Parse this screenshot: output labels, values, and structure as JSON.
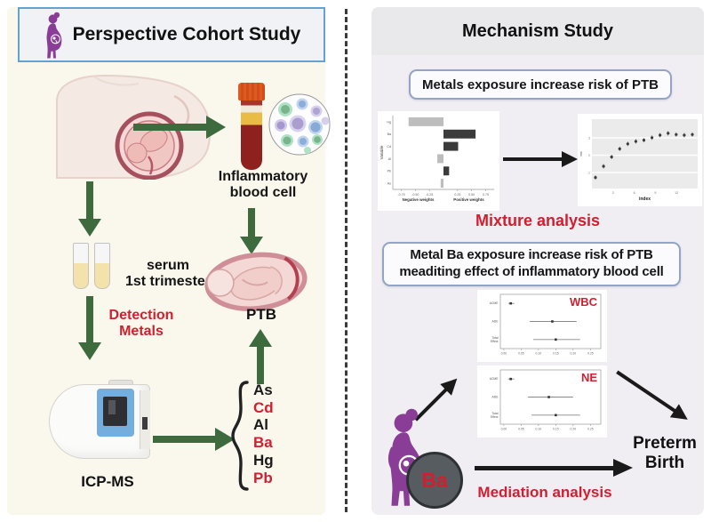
{
  "left_panel": {
    "title": "Perspective Cohort Study",
    "inflammatory_label": "Inflammatory\nblood cell",
    "serum_label": "serum\n1st trimester",
    "detection_label": "Detection\nMetals",
    "ptb_label": "PTB",
    "icpms_label": "ICP-MS",
    "metals": [
      {
        "symbol": "As",
        "color": "#1a1a1a"
      },
      {
        "symbol": "Cd",
        "color": "#cf2030"
      },
      {
        "symbol": "Al",
        "color": "#1a1a1a"
      },
      {
        "symbol": "Ba",
        "color": "#cf2030"
      },
      {
        "symbol": "Hg",
        "color": "#1a1a1a"
      },
      {
        "symbol": "Pb",
        "color": "#cf2030"
      }
    ]
  },
  "right_panel": {
    "title": "Mechanism Study",
    "box1_label": "Metals exposure increase risk of PTB",
    "mixture_label": "Mixture analysis",
    "box2_label": "Metal Ba exposure increase risk of PTB\nmeaditing effect of inflammatory blood cell",
    "mediation_label": "Mediation analysis",
    "ba_label": "Ba",
    "preterm_label": "Preterm\nBirth"
  },
  "colors": {
    "left_panel_bg": "#faf7ec",
    "right_panel_bg": "#f0edf3",
    "green_arrow": "#3e6b3e",
    "black_arrow": "#1a1a1a",
    "red_accent": "#cf2030",
    "purple_figure": "#8a3d96",
    "title_box_border": "#63a3d2"
  },
  "chart_data": [
    {
      "id": "wqs-weights",
      "type": "bar",
      "orientation": "horizontal",
      "ylabel": "Variable",
      "xlabel_neg": "Negative weights",
      "xlabel_pos": "Positive weights",
      "categories": [
        "Hg",
        "Ba",
        "Cd",
        "Al",
        "Pb",
        "As"
      ],
      "values": [
        -0.62,
        0.57,
        0.26,
        -0.11,
        0.1,
        -0.05
      ],
      "xticks": [
        -0.75,
        -0.5,
        -0.25,
        0.25,
        0.5,
        0.75
      ],
      "xlim": [
        -0.9,
        0.9
      ],
      "neg_color": "#bdbdbd",
      "pos_color": "#3b3b3b"
    },
    {
      "id": "dose-response",
      "type": "scatter",
      "xlabel": "index",
      "ylabel": "est",
      "yticks": [
        "1",
        "2",
        "3"
      ],
      "xticks": [
        "3",
        "6",
        "9",
        "12"
      ],
      "x": [
        1,
        2,
        3,
        4,
        5,
        6,
        7,
        8,
        9,
        10,
        11,
        12,
        13
      ],
      "y": [
        0.12,
        0.3,
        0.45,
        0.58,
        0.66,
        0.7,
        0.72,
        0.76,
        0.8,
        0.83,
        0.81,
        0.8,
        0.81
      ],
      "point_color": "#3b3b3b",
      "plot_bg": "#ebebeb"
    },
    {
      "id": "forest-wbc",
      "type": "forest",
      "label": "WBC",
      "label_color": "#cf2030",
      "rows": [
        {
          "name": "ACME",
          "est": 0.02,
          "lo": 0.013,
          "hi": 0.03
        },
        {
          "name": "ADE",
          "est": 0.14,
          "lo": 0.075,
          "hi": 0.21
        },
        {
          "name": "Total\nEffect",
          "est": 0.15,
          "lo": 0.085,
          "hi": 0.22
        }
      ],
      "xticks": [
        0,
        0.05,
        0.1,
        0.15,
        0.2,
        0.25
      ],
      "xlim": [
        -0.01,
        0.28
      ]
    },
    {
      "id": "forest-ne",
      "type": "forest",
      "label": "NE",
      "label_color": "#cf2030",
      "rows": [
        {
          "name": "ACME",
          "est": 0.02,
          "lo": 0.012,
          "hi": 0.03
        },
        {
          "name": "ADE",
          "est": 0.13,
          "lo": 0.07,
          "hi": 0.2
        },
        {
          "name": "Total\nEffect",
          "est": 0.15,
          "lo": 0.08,
          "hi": 0.22
        }
      ],
      "xticks": [
        0,
        0.05,
        0.1,
        0.15,
        0.2,
        0.25
      ],
      "xlim": [
        -0.01,
        0.28
      ]
    }
  ]
}
